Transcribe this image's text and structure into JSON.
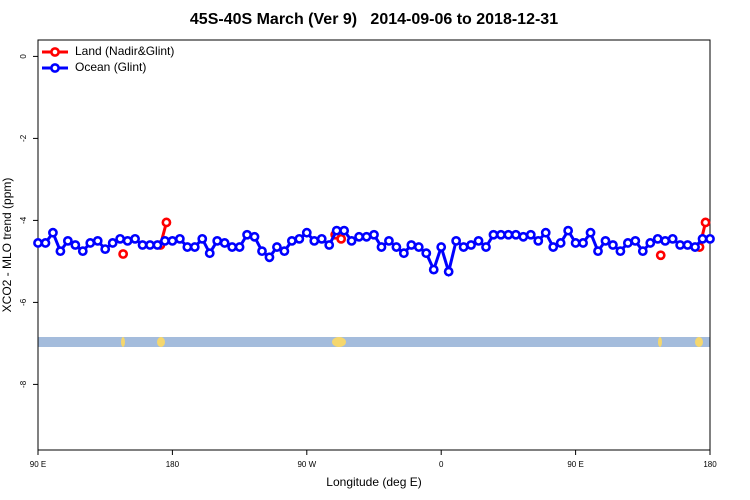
{
  "chart_data": {
    "type": "line",
    "title": "45S-40S March (Ver 9)   2014-09-06 to 2018-12-31",
    "xlabel": "Longitude (deg E)",
    "ylabel": "XCO2 - MLO trend (ppm)",
    "xlim": [
      90,
      540
    ],
    "ylim": [
      -9.6,
      0.4
    ],
    "xticks": [
      {
        "value": 90,
        "label": "90 E"
      },
      {
        "value": 180,
        "label": "180"
      },
      {
        "value": 270,
        "label": "90 W"
      },
      {
        "value": 360,
        "label": "0"
      },
      {
        "value": 450,
        "label": "90 E"
      },
      {
        "value": 540,
        "label": "180"
      }
    ],
    "yticks": [
      0,
      -2,
      -4,
      -6,
      -8
    ],
    "legend": "top-left",
    "series": [
      {
        "name": "Land (Nadir&Glint)",
        "color": "#ff0000",
        "x": [
          147,
          null,
          172,
          176,
          null,
          289,
          293,
          null,
          507,
          null,
          533,
          537
        ],
        "values": [
          -4.82,
          null,
          -4.6,
          -4.05,
          null,
          -4.35,
          -4.45,
          null,
          -4.85,
          null,
          -4.65,
          -4.05
        ]
      },
      {
        "name": "Ocean (Glint)",
        "color": "#0000ff",
        "x": [
          90,
          95,
          100,
          105,
          110,
          115,
          120,
          125,
          130,
          135,
          140,
          145,
          150,
          155,
          160,
          165,
          170,
          175,
          180,
          185,
          190,
          195,
          200,
          205,
          210,
          215,
          220,
          225,
          230,
          235,
          240,
          245,
          250,
          255,
          260,
          265,
          270,
          275,
          280,
          285,
          290,
          295,
          300,
          305,
          310,
          315,
          320,
          325,
          330,
          335,
          340,
          345,
          350,
          355,
          360,
          365,
          370,
          375,
          380,
          385,
          390,
          395,
          400,
          405,
          410,
          415,
          420,
          425,
          430,
          435,
          440,
          445,
          450,
          455,
          460,
          465,
          470,
          475,
          480,
          485,
          490,
          495,
          500,
          505,
          510,
          515,
          520,
          525,
          530,
          535,
          540
        ],
        "values": [
          -4.55,
          -4.55,
          -4.3,
          -4.75,
          -4.5,
          -4.6,
          -4.75,
          -4.55,
          -4.5,
          -4.7,
          -4.55,
          -4.45,
          -4.5,
          -4.45,
          -4.6,
          -4.6,
          -4.6,
          -4.5,
          -4.5,
          -4.45,
          -4.65,
          -4.65,
          -4.45,
          -4.8,
          -4.5,
          -4.55,
          -4.65,
          -4.65,
          -4.35,
          -4.4,
          -4.75,
          -4.9,
          -4.65,
          -4.75,
          -4.5,
          -4.45,
          -4.3,
          -4.5,
          -4.45,
          -4.6,
          -4.25,
          -4.25,
          -4.5,
          -4.4,
          -4.4,
          -4.35,
          -4.65,
          -4.5,
          -4.65,
          -4.8,
          -4.6,
          -4.65,
          -4.8,
          -5.2,
          -4.65,
          -5.25,
          -4.5,
          -4.65,
          -4.6,
          -4.5,
          -4.65,
          -4.35,
          -4.35,
          -4.35,
          -4.35,
          -4.4,
          -4.35,
          -4.5,
          -4.3,
          -4.65,
          -4.55,
          -4.25,
          -4.55,
          -4.55,
          -4.3,
          -4.75,
          -4.5,
          -4.6,
          -4.75,
          -4.55,
          -4.5,
          -4.75,
          -4.55,
          -4.45,
          -4.5,
          -4.45,
          -4.6,
          -4.6,
          -4.65,
          -4.45,
          -4.45
        ]
      }
    ]
  }
}
